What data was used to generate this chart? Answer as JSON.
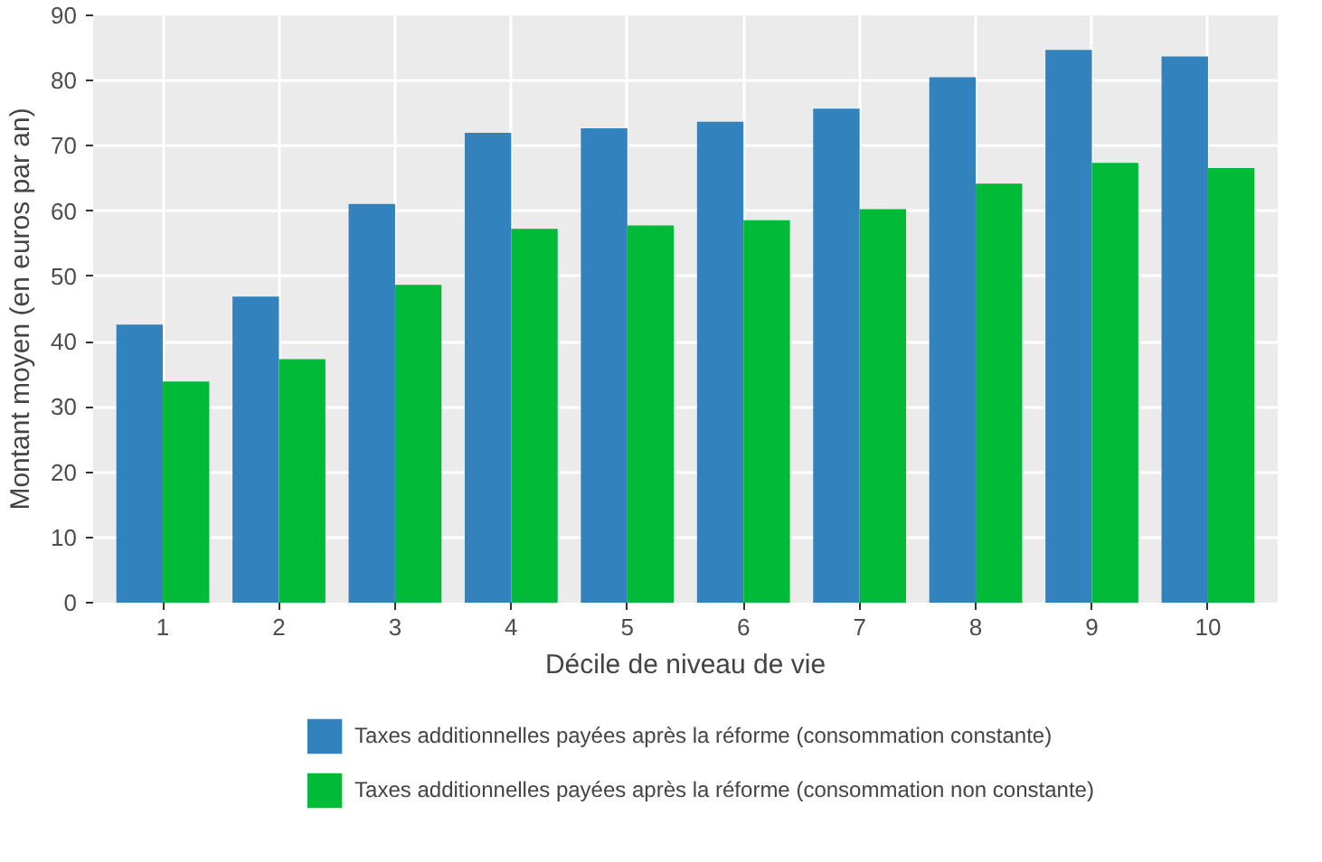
{
  "chart_data": {
    "type": "bar",
    "xlabel": "Décile de niveau de vie",
    "ylabel": "Montant moyen (en euros par an)",
    "categories": [
      "1",
      "2",
      "3",
      "4",
      "5",
      "6",
      "7",
      "8",
      "9",
      "10"
    ],
    "series": [
      {
        "name": "Taxes additionnelles payées après la réforme (consommation constante)",
        "color": "#3182bd",
        "values": [
          42.6,
          46.9,
          61.1,
          72.0,
          72.7,
          73.7,
          75.7,
          80.5,
          84.7,
          83.7
        ]
      },
      {
        "name": "Taxes additionnelles payées après la réforme (consommation non constante)",
        "color": "#00ba38",
        "values": [
          33.9,
          37.3,
          48.7,
          57.3,
          57.8,
          58.6,
          60.3,
          64.2,
          67.4,
          66.6
        ]
      }
    ],
    "ylim": [
      0,
      90
    ],
    "yticks": [
      0,
      10,
      20,
      30,
      40,
      50,
      60,
      70,
      80,
      90
    ],
    "grid": true,
    "legend": "bottom"
  }
}
